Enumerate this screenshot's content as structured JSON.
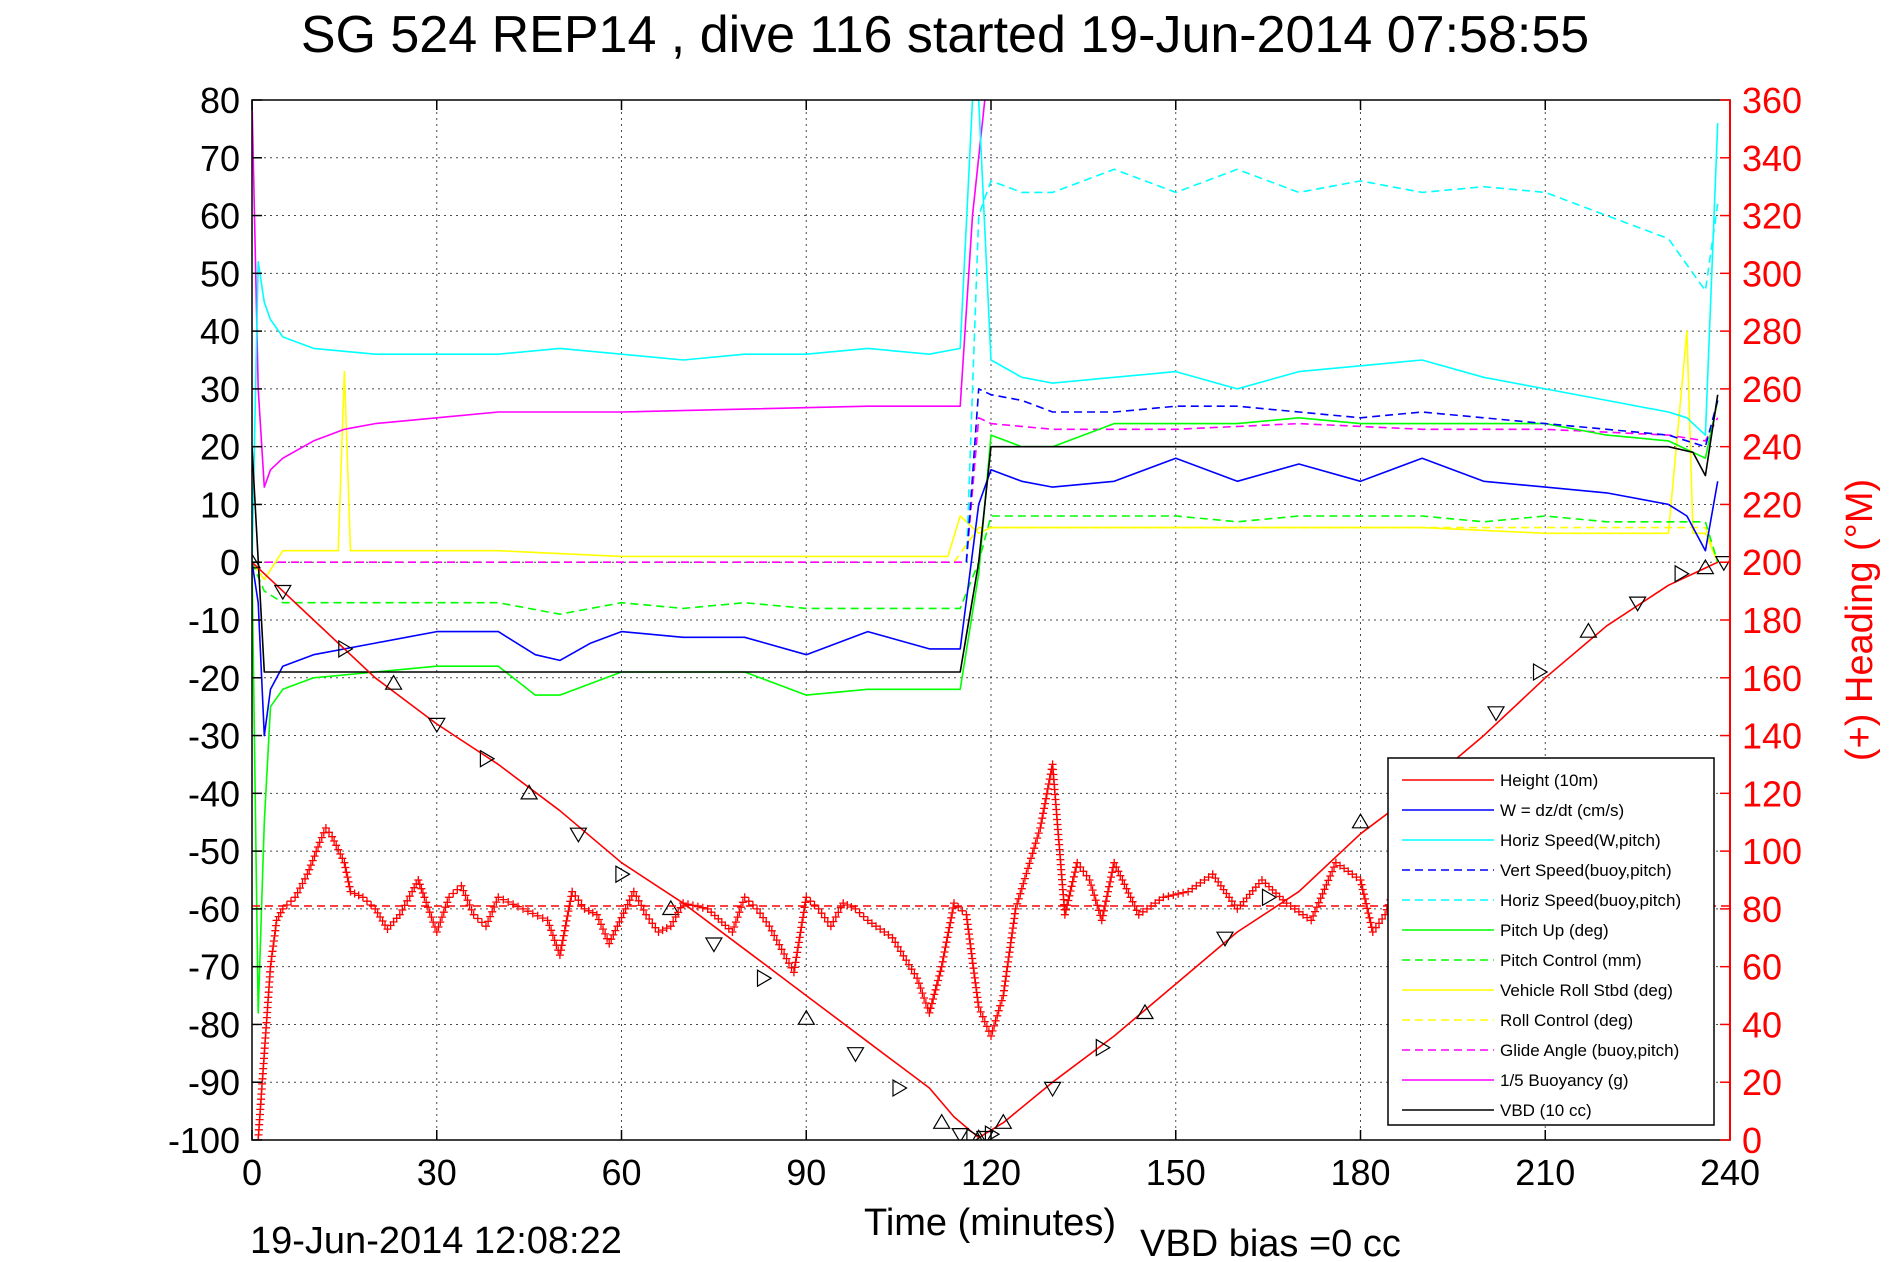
{
  "header": {
    "title": "SG 524   REP14  , dive 116 started 19-Jun-2014 07:58:55"
  },
  "footer": {
    "timestamp": "19-Jun-2014 12:08:22",
    "vbd_bias": "VBD bias =0 cc"
  },
  "chart_data": {
    "type": "line",
    "title": "SG 524   REP14  , dive 116 started 19-Jun-2014 07:58:55",
    "xlabel": "Time (minutes)",
    "ylabel": "",
    "y2label": "(+) Heading (°M)",
    "xlim": [
      0,
      240
    ],
    "ylim": [
      -100,
      80
    ],
    "y2lim": [
      0,
      360
    ],
    "x_ticks": [
      "0",
      "30",
      "60",
      "90",
      "120",
      "150",
      "180",
      "210",
      "240"
    ],
    "y_ticks": [
      "-100",
      "-90",
      "-80",
      "-70",
      "-60",
      "-50",
      "-40",
      "-30",
      "-20",
      "-10",
      "0",
      "10",
      "20",
      "30",
      "40",
      "50",
      "60",
      "70",
      "80"
    ],
    "y2_ticks": [
      "0",
      "20",
      "40",
      "60",
      "80",
      "100",
      "120",
      "140",
      "160",
      "180",
      "200",
      "220",
      "240",
      "260",
      "280",
      "300",
      "320",
      "340",
      "360"
    ],
    "grid": true,
    "legend_position": "bottom-right",
    "colors": {
      "red": "#ff0000",
      "blue": "#0000ff",
      "cyan": "#00ffff",
      "green": "#00ff00",
      "yellow": "#ffff00",
      "magenta": "#ff00ff",
      "black": "#000000"
    },
    "series": [
      {
        "name": "Height (10m)",
        "color": "#ff0000",
        "style": "solid",
        "x": [
          0,
          5,
          10,
          20,
          30,
          40,
          50,
          60,
          70,
          80,
          90,
          100,
          105,
          110,
          114,
          118,
          122,
          130,
          140,
          150,
          160,
          170,
          180,
          190,
          200,
          210,
          220,
          230,
          236,
          238
        ],
        "y": [
          0,
          -5,
          -10,
          -20,
          -28,
          -35,
          -43,
          -52,
          -59,
          -67,
          -75,
          -83,
          -87,
          -91,
          -96,
          -99.6,
          -97,
          -90,
          -82,
          -73,
          -64,
          -57,
          -47,
          -39,
          -30,
          -20,
          -11,
          -4,
          -1,
          0
        ]
      },
      {
        "name": "W = dz/dt (cm/s)",
        "color": "#0000ff",
        "style": "solid",
        "x": [
          0,
          1,
          2,
          3,
          5,
          10,
          20,
          30,
          40,
          46,
          50,
          55,
          60,
          70,
          80,
          90,
          100,
          110,
          115,
          118,
          120,
          125,
          130,
          140,
          150,
          160,
          170,
          180,
          190,
          200,
          210,
          220,
          230,
          233,
          236,
          238
        ],
        "y": [
          0,
          -7,
          -30,
          -22,
          -18,
          -16,
          -14,
          -12,
          -12,
          -16,
          -17,
          -14,
          -12,
          -13,
          -13,
          -16,
          -12,
          -15,
          -15,
          10,
          16,
          14,
          13,
          14,
          18,
          14,
          17,
          14,
          18,
          14,
          13,
          12,
          10,
          8,
          2,
          14
        ]
      },
      {
        "name": "Horiz Speed(W,pitch)",
        "color": "#00ffff",
        "style": "solid",
        "x": [
          0,
          1,
          2,
          3,
          5,
          10,
          20,
          30,
          40,
          50,
          60,
          70,
          80,
          90,
          100,
          110,
          115,
          117,
          118,
          120,
          125,
          130,
          140,
          150,
          160,
          170,
          180,
          190,
          200,
          210,
          220,
          230,
          233,
          236,
          238
        ],
        "y": [
          0,
          52,
          45,
          42,
          39,
          37,
          36,
          36,
          36,
          37,
          36,
          35,
          36,
          36,
          37,
          36,
          37,
          80,
          80,
          35,
          32,
          31,
          32,
          33,
          30,
          33,
          34,
          35,
          32,
          30,
          28,
          26,
          25,
          22,
          76
        ]
      },
      {
        "name": "Vert Speed(buoy,pitch)",
        "color": "#0000ff",
        "style": "dashed",
        "x": [
          116,
          118,
          120,
          125,
          130,
          140,
          150,
          160,
          170,
          180,
          190,
          200,
          210,
          220,
          230,
          236,
          238
        ],
        "y": [
          0,
          30,
          29,
          28,
          26,
          26,
          27,
          27,
          26,
          25,
          26,
          25,
          24,
          23,
          22,
          20,
          28
        ]
      },
      {
        "name": "Horiz Speed(buoy,pitch)",
        "color": "#00ffff",
        "style": "dashed",
        "x": [
          116,
          118,
          120,
          125,
          130,
          140,
          150,
          160,
          170,
          180,
          190,
          200,
          210,
          220,
          225,
          230,
          234,
          236,
          238
        ],
        "y": [
          0,
          60,
          66,
          64,
          64,
          68,
          64,
          68,
          64,
          66,
          64,
          65,
          64,
          60,
          58,
          56,
          50,
          47,
          62
        ]
      },
      {
        "name": "Pitch Up (deg)",
        "color": "#00ff00",
        "style": "solid",
        "x": [
          0,
          1,
          2,
          3,
          5,
          10,
          20,
          30,
          40,
          46,
          50,
          60,
          70,
          80,
          90,
          100,
          110,
          115,
          118,
          120,
          125,
          130,
          140,
          150,
          160,
          170,
          180,
          190,
          200,
          210,
          220,
          230,
          236,
          238
        ],
        "y": [
          0,
          -78,
          -45,
          -25,
          -22,
          -20,
          -19,
          -18,
          -18,
          -23,
          -23,
          -19,
          -19,
          -19,
          -23,
          -22,
          -22,
          -22,
          -2,
          22,
          20,
          20,
          24,
          24,
          24,
          25,
          24,
          24,
          24,
          24,
          22,
          21,
          18,
          28
        ]
      },
      {
        "name": "Pitch Control (mm)",
        "color": "#00ff00",
        "style": "dashed",
        "x": [
          0,
          2,
          5,
          10,
          20,
          30,
          40,
          50,
          60,
          70,
          80,
          90,
          100,
          110,
          115,
          118,
          120,
          130,
          140,
          150,
          160,
          170,
          180,
          190,
          200,
          210,
          220,
          230,
          236,
          238
        ],
        "y": [
          0,
          -5,
          -7,
          -7,
          -7,
          -7,
          -7,
          -9,
          -7,
          -8,
          -7,
          -8,
          -8,
          -8,
          -8,
          0,
          8,
          8,
          8,
          8,
          7,
          8,
          8,
          8,
          7,
          8,
          7,
          7,
          7,
          0
        ]
      },
      {
        "name": "Vehicle Roll Stbd (deg)",
        "color": "#ffff00",
        "style": "solid",
        "x": [
          0,
          2,
          5,
          10,
          14,
          15,
          16,
          20,
          40,
          60,
          80,
          100,
          113,
          115,
          118,
          120,
          130,
          150,
          170,
          190,
          210,
          230,
          233,
          234,
          236,
          238
        ],
        "y": [
          0,
          -3,
          2,
          2,
          2,
          33,
          2,
          2,
          2,
          1,
          1,
          1,
          1,
          8,
          5,
          6,
          6,
          6,
          6,
          6,
          5,
          5,
          40,
          5,
          5,
          0
        ]
      },
      {
        "name": "Roll Control (deg)",
        "color": "#ffff00",
        "style": "dashed",
        "x": [
          0,
          5,
          10,
          20,
          40,
          60,
          80,
          100,
          114,
          116,
          118,
          120,
          140,
          160,
          180,
          200,
          220,
          236,
          238
        ],
        "y": [
          0,
          0,
          0,
          0,
          0,
          0,
          0,
          0,
          0,
          3,
          6,
          6,
          6,
          6,
          6,
          6,
          6,
          6,
          0
        ]
      },
      {
        "name": "Glide Angle (buoy,pitch)",
        "color": "#ff00ff",
        "style": "dashed",
        "x": [
          0,
          20,
          40,
          60,
          80,
          100,
          116,
          118,
          120,
          130,
          150,
          170,
          190,
          210,
          230,
          236,
          238
        ],
        "y": [
          0,
          0,
          0,
          0,
          0,
          0,
          0,
          25,
          24,
          23,
          23,
          24,
          23,
          23,
          22,
          21,
          25
        ]
      },
      {
        "name": "1/5 Buoyancy (g)",
        "color": "#ff00ff",
        "style": "solid",
        "x": [
          0,
          1,
          2,
          3,
          5,
          10,
          15,
          20,
          30,
          40,
          60,
          80,
          100,
          115,
          117,
          119
        ],
        "y": [
          80,
          30,
          13,
          16,
          18,
          21,
          23,
          24,
          25,
          26,
          26,
          26.5,
          27,
          27,
          60,
          80
        ]
      },
      {
        "name": "VBD (10 cc)",
        "color": "#000000",
        "style": "solid",
        "x": [
          0,
          2,
          5,
          10,
          20,
          40,
          60,
          80,
          100,
          110,
          115,
          118,
          120,
          140,
          160,
          180,
          200,
          220,
          230,
          234,
          236,
          238
        ],
        "y": [
          20,
          -19,
          -19,
          -19,
          -19,
          -19,
          -19,
          -19,
          -19,
          -19,
          -19,
          0,
          20,
          20,
          20,
          20,
          20,
          20,
          20,
          19,
          15,
          29
        ]
      }
    ],
    "heading_series": {
      "name": "(+) Heading (°M)",
      "color": "#ff0000",
      "marker": "+",
      "axis": "right",
      "reference_value": 81,
      "x": [
        1,
        2,
        3,
        4,
        5,
        7,
        9,
        11,
        12,
        13,
        15,
        16,
        18,
        20,
        22,
        24,
        26,
        27,
        28,
        30,
        32,
        34,
        36,
        38,
        40,
        44,
        48,
        50,
        52,
        54,
        56,
        58,
        62,
        64,
        66,
        68,
        70,
        74,
        78,
        80,
        82,
        84,
        86,
        88,
        90,
        92,
        94,
        96,
        98,
        100,
        104,
        108,
        110,
        112,
        114,
        116,
        118,
        120,
        122,
        124,
        126,
        128,
        130,
        132,
        134,
        136,
        138,
        140,
        144,
        148,
        152,
        156,
        160,
        164,
        168,
        172,
        176,
        180,
        182,
        184,
        186,
        188,
        190,
        194,
        198,
        202,
        206
      ],
      "y": [
        0,
        30,
        60,
        76,
        80,
        84,
        92,
        103,
        108,
        105,
        96,
        86,
        84,
        80,
        73,
        78,
        86,
        90,
        84,
        72,
        84,
        88,
        78,
        74,
        84,
        80,
        76,
        64,
        86,
        80,
        78,
        68,
        86,
        78,
        72,
        74,
        82,
        80,
        72,
        84,
        80,
        74,
        66,
        58,
        84,
        80,
        74,
        82,
        80,
        76,
        70,
        56,
        44,
        60,
        82,
        78,
        46,
        36,
        50,
        80,
        94,
        108,
        130,
        78,
        96,
        90,
        76,
        96,
        78,
        84,
        86,
        92,
        80,
        90,
        82,
        76,
        96,
        90,
        72,
        78,
        90,
        84,
        80,
        82,
        76,
        82,
        90
      ]
    },
    "height_markers": {
      "x": [
        0,
        5,
        15,
        23,
        30,
        38,
        45,
        53,
        60,
        68,
        75,
        83,
        90,
        98,
        105,
        112,
        115,
        117,
        118,
        119,
        120,
        122,
        130,
        138,
        145,
        158,
        165,
        180,
        202,
        209,
        217,
        225,
        232,
        236,
        239
      ],
      "y": [
        0,
        -5,
        -15,
        -21,
        -28,
        -34,
        -40,
        -47,
        -54,
        -60,
        -66,
        -72,
        -79,
        -85,
        -91,
        -97,
        -99,
        -99.5,
        -99.7,
        -99.5,
        -99,
        -97,
        -91,
        -84,
        -78,
        -65,
        -58,
        -45,
        -26,
        -19,
        -12,
        -7,
        -2,
        -1,
        0
      ]
    }
  },
  "legend": {
    "entries": [
      {
        "label": "Height (10m)",
        "color": "#ff0000",
        "style": "solid"
      },
      {
        "label": "W = dz/dt (cm/s)",
        "color": "#0000ff",
        "style": "solid"
      },
      {
        "label": "Horiz Speed(W,pitch)",
        "color": "#00ffff",
        "style": "solid"
      },
      {
        "label": "Vert Speed(buoy,pitch)",
        "color": "#0000ff",
        "style": "dashed"
      },
      {
        "label": "Horiz Speed(buoy,pitch)",
        "color": "#00ffff",
        "style": "dashed"
      },
      {
        "label": "Pitch Up (deg)",
        "color": "#00ff00",
        "style": "solid"
      },
      {
        "label": "Pitch Control (mm)",
        "color": "#00ff00",
        "style": "dashed"
      },
      {
        "label": "Vehicle Roll Stbd (deg)",
        "color": "#ffff00",
        "style": "solid"
      },
      {
        "label": "Roll Control (deg)",
        "color": "#ffff00",
        "style": "dashed"
      },
      {
        "label": "Glide Angle (buoy,pitch)",
        "color": "#ff00ff",
        "style": "dashed"
      },
      {
        "label": "1/5 Buoyancy (g)",
        "color": "#ff00ff",
        "style": "solid"
      },
      {
        "label": "VBD (10 cc)",
        "color": "#000000",
        "style": "solid"
      }
    ]
  }
}
